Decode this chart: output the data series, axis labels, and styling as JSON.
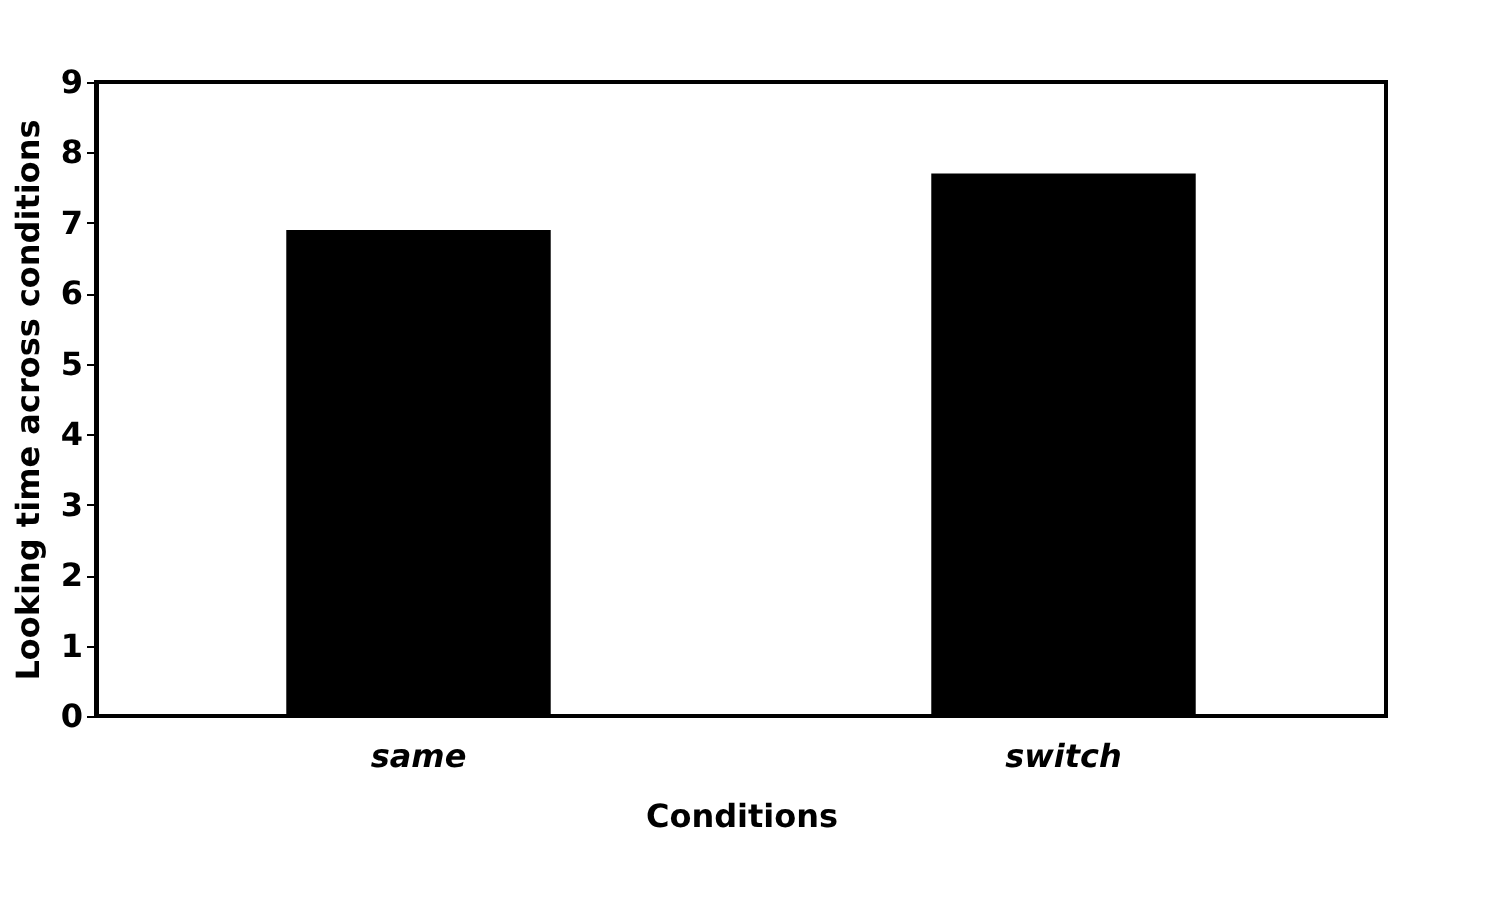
{
  "chart_data": {
    "type": "bar",
    "xlabel": "Conditions",
    "ylabel": "Looking time across conditions",
    "categories": [
      "same",
      "switch"
    ],
    "values": [
      6.9,
      7.7
    ],
    "color": "#000000",
    "ylim": [
      0,
      9
    ],
    "yticks": [
      0,
      1,
      2,
      3,
      4,
      5,
      6,
      7,
      8,
      9
    ],
    "grid": false
  }
}
